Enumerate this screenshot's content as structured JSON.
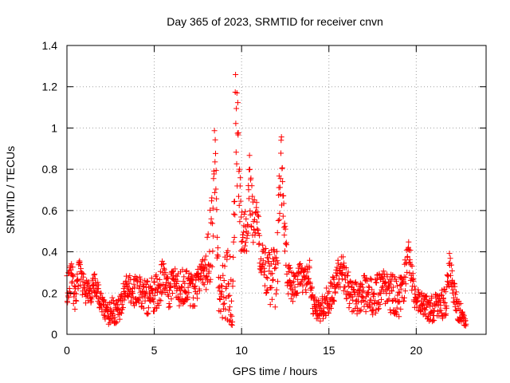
{
  "chart_data": {
    "type": "scatter",
    "title": "Day 365 of 2023, SRMTID for receiver cnvn",
    "xlabel": "GPS time / hours",
    "ylabel": "SRMTID / TECUs",
    "xlim": [
      0,
      24
    ],
    "ylim": [
      0,
      1.4
    ],
    "xticks": [
      0,
      5,
      10,
      15,
      20
    ],
    "yticks": [
      0,
      0.2,
      0.4,
      0.6,
      0.8,
      1,
      1.2,
      1.4
    ],
    "ytick_labels": [
      "0",
      "0.2",
      "0.4",
      "0.6",
      "0.8",
      "1",
      "1.2",
      "1.4"
    ],
    "grid": true,
    "legend": "none",
    "marker": "+",
    "series": [
      {
        "name": "SRMTID",
        "color": "#ff0000",
        "anchors": [
          [
            0.0,
            0.22
          ],
          [
            0.3,
            0.28
          ],
          [
            0.45,
            0.16
          ],
          [
            0.7,
            0.3
          ],
          [
            1.0,
            0.22
          ],
          [
            1.3,
            0.2
          ],
          [
            1.6,
            0.25
          ],
          [
            2.0,
            0.14
          ],
          [
            2.3,
            0.09
          ],
          [
            2.6,
            0.12
          ],
          [
            2.9,
            0.1
          ],
          [
            3.2,
            0.18
          ],
          [
            3.5,
            0.24
          ],
          [
            3.8,
            0.2
          ],
          [
            4.2,
            0.22
          ],
          [
            4.6,
            0.18
          ],
          [
            5.0,
            0.2
          ],
          [
            5.3,
            0.22
          ],
          [
            5.5,
            0.3
          ],
          [
            5.8,
            0.18
          ],
          [
            6.1,
            0.25
          ],
          [
            6.4,
            0.22
          ],
          [
            6.8,
            0.24
          ],
          [
            7.2,
            0.2
          ],
          [
            7.6,
            0.26
          ],
          [
            7.9,
            0.3
          ],
          [
            8.1,
            0.38
          ],
          [
            8.3,
            0.5
          ],
          [
            8.45,
            0.85
          ],
          [
            8.55,
            0.6
          ],
          [
            8.7,
            0.18
          ],
          [
            9.0,
            0.22
          ],
          [
            9.3,
            0.2
          ],
          [
            9.5,
            0.18
          ],
          [
            9.65,
            1.0
          ],
          [
            9.8,
            0.9
          ],
          [
            9.95,
            0.55
          ],
          [
            10.1,
            0.45
          ],
          [
            10.3,
            0.5
          ],
          [
            10.45,
            0.75
          ],
          [
            10.6,
            0.6
          ],
          [
            10.8,
            0.55
          ],
          [
            11.0,
            0.45
          ],
          [
            11.3,
            0.32
          ],
          [
            11.6,
            0.28
          ],
          [
            12.0,
            0.25
          ],
          [
            12.25,
            0.85
          ],
          [
            12.4,
            0.6
          ],
          [
            12.6,
            0.3
          ],
          [
            12.9,
            0.22
          ],
          [
            13.3,
            0.28
          ],
          [
            13.6,
            0.25
          ],
          [
            13.9,
            0.3
          ],
          [
            14.1,
            0.12
          ],
          [
            14.5,
            0.12
          ],
          [
            14.8,
            0.15
          ],
          [
            15.2,
            0.2
          ],
          [
            15.5,
            0.28
          ],
          [
            15.8,
            0.3
          ],
          [
            16.2,
            0.2
          ],
          [
            16.6,
            0.18
          ],
          [
            17.0,
            0.2
          ],
          [
            17.5,
            0.18
          ],
          [
            18.0,
            0.22
          ],
          [
            18.5,
            0.2
          ],
          [
            19.0,
            0.18
          ],
          [
            19.3,
            0.22
          ],
          [
            19.55,
            0.45
          ],
          [
            19.7,
            0.3
          ],
          [
            19.9,
            0.18
          ],
          [
            20.3,
            0.15
          ],
          [
            20.8,
            0.12
          ],
          [
            21.3,
            0.14
          ],
          [
            21.7,
            0.15
          ],
          [
            21.9,
            0.32
          ],
          [
            22.1,
            0.22
          ],
          [
            22.4,
            0.12
          ],
          [
            22.7,
            0.08
          ],
          [
            22.85,
            0.06
          ]
        ],
        "spread": [
          [
            0.0,
            0.08
          ],
          [
            2.0,
            0.05
          ],
          [
            5.0,
            0.09
          ],
          [
            7.8,
            0.08
          ],
          [
            8.4,
            0.25
          ],
          [
            8.7,
            0.1
          ],
          [
            9.6,
            0.28
          ],
          [
            10.1,
            0.12
          ],
          [
            10.5,
            0.15
          ],
          [
            11.2,
            0.1
          ],
          [
            12.2,
            0.18
          ],
          [
            12.7,
            0.08
          ],
          [
            14.0,
            0.06
          ],
          [
            15.5,
            0.08
          ],
          [
            19.5,
            0.1
          ],
          [
            20.0,
            0.05
          ],
          [
            21.9,
            0.08
          ],
          [
            22.85,
            0.04
          ]
        ]
      }
    ]
  }
}
